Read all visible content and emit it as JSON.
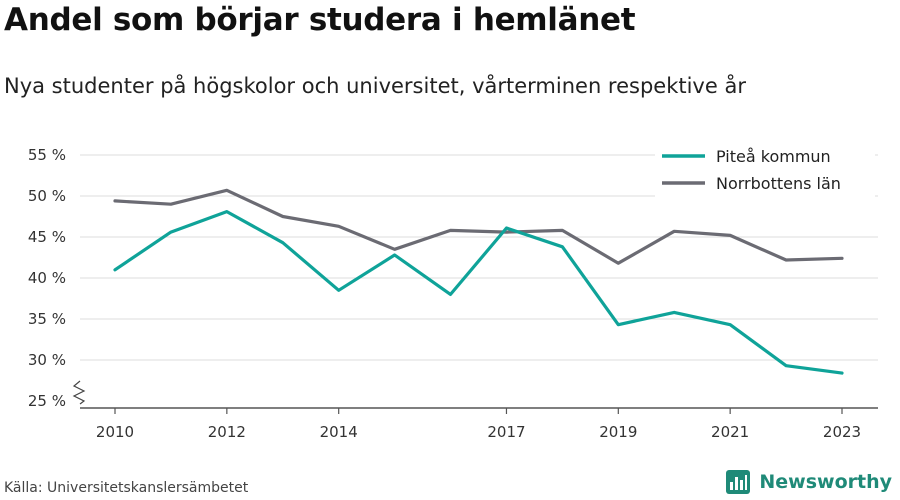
{
  "header": {
    "title": "Andel som börjar studera i hemlänet",
    "subtitle": "Nya studenter på högskolor och universitet, vårterminen respektive år"
  },
  "footer": {
    "source": "Källa: Universitetskanslersämbetet",
    "brand": "Newsworthy",
    "brand_icon": "newsworthy-logo-icon"
  },
  "chart_data": {
    "type": "line",
    "x": [
      2010,
      2011,
      2012,
      2013,
      2014,
      2015,
      2016,
      2017,
      2018,
      2019,
      2020,
      2021,
      2022,
      2023
    ],
    "x_tick_labels": [
      "2010",
      "2012",
      "2014",
      "2017",
      "2019",
      "2021",
      "2023"
    ],
    "y_tick_labels": [
      "25 %",
      "30 %",
      "35 %",
      "40 %",
      "45 %",
      "50 %",
      "55 %"
    ],
    "y_ticks": [
      25,
      30,
      35,
      40,
      45,
      50,
      55
    ],
    "ylim": [
      25,
      55
    ],
    "y_axis_break": true,
    "grid": true,
    "legend_position": "top-right",
    "series": [
      {
        "name": "Piteå kommun",
        "color": "#0fa399",
        "values": [
          41.0,
          45.6,
          48.1,
          44.3,
          38.5,
          42.8,
          38.0,
          46.1,
          43.8,
          34.3,
          35.8,
          34.3,
          29.3,
          28.4
        ]
      },
      {
        "name": "Norrbottens län",
        "color": "#6b6b73",
        "values": [
          49.4,
          49.0,
          50.7,
          47.5,
          46.3,
          43.5,
          45.8,
          45.6,
          45.8,
          41.8,
          45.7,
          45.2,
          42.2,
          42.4
        ]
      }
    ]
  }
}
